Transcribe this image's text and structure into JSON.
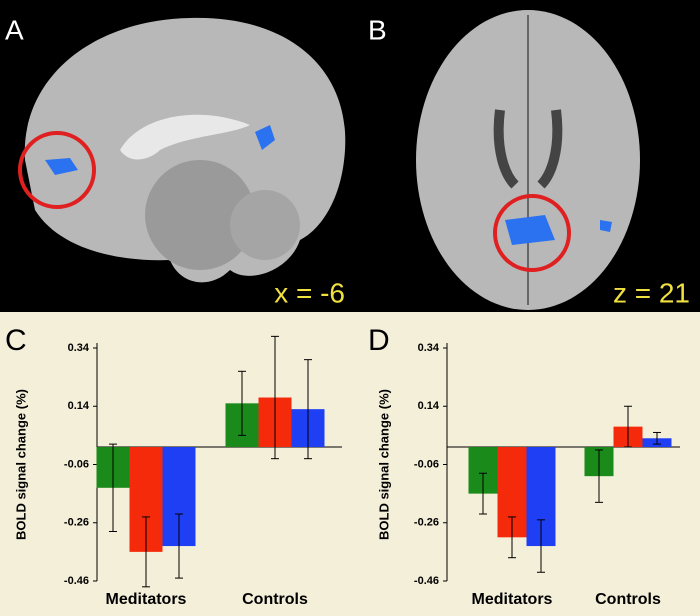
{
  "images": [
    {
      "label": "A",
      "caption": "x = -6"
    },
    {
      "label": "B",
      "caption": "z = 21"
    }
  ],
  "chart_data": [
    {
      "type": "bar",
      "panel": "C",
      "ylabel": "BOLD signal change (%)",
      "categories": [
        "Meditators",
        "Controls"
      ],
      "series": [
        {
          "color": "#1a8a1a",
          "values": [
            -0.14,
            0.15
          ],
          "errors": [
            0.15,
            0.11
          ]
        },
        {
          "color": "#f52a0a",
          "values": [
            -0.36,
            0.17
          ],
          "errors": [
            0.12,
            0.21
          ]
        },
        {
          "color": "#1f3ff5",
          "values": [
            -0.34,
            0.13
          ],
          "errors": [
            0.11,
            0.17
          ]
        }
      ],
      "ylim": [
        -0.46,
        0.34
      ],
      "yticks": [
        0.34,
        0.14,
        -0.06,
        -0.26,
        -0.46
      ]
    },
    {
      "type": "bar",
      "panel": "D",
      "ylabel": "BOLD signal change (%)",
      "categories": [
        "Meditators",
        "Controls"
      ],
      "series": [
        {
          "color": "#1a8a1a",
          "values": [
            -0.16,
            -0.1
          ],
          "errors": [
            0.07,
            0.09
          ]
        },
        {
          "color": "#f52a0a",
          "values": [
            -0.31,
            0.07
          ],
          "errors": [
            0.07,
            0.07
          ]
        },
        {
          "color": "#1f3ff5",
          "values": [
            -0.34,
            0.03
          ],
          "errors": [
            0.09,
            0.02
          ]
        }
      ],
      "ylim": [
        -0.46,
        0.34
      ],
      "yticks": [
        0.34,
        0.14,
        -0.06,
        -0.26,
        -0.46
      ]
    }
  ]
}
